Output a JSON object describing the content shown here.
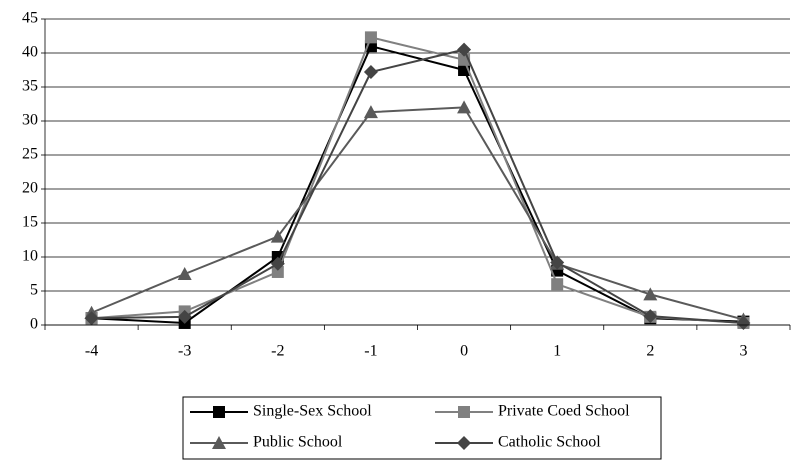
{
  "chart_data": {
    "type": "line",
    "categories": [
      "-4",
      "-3",
      "-2",
      "-1",
      "0",
      "1",
      "2",
      "3"
    ],
    "ylim": [
      0,
      45
    ],
    "yticks": [
      0,
      5,
      10,
      15,
      20,
      25,
      30,
      35,
      40,
      45
    ],
    "grid": true,
    "series": [
      {
        "name": "Single-Sex School",
        "color": "#000000",
        "marker": "square",
        "values": [
          1,
          0.3,
          10,
          41,
          37.5,
          8,
          1,
          0.5
        ]
      },
      {
        "name": "Private Coed School",
        "color": "#808080",
        "marker": "square",
        "values": [
          1,
          2,
          7.8,
          42.3,
          39,
          6,
          1.2,
          0.3
        ]
      },
      {
        "name": "Public School",
        "color": "#5a5a5a",
        "marker": "triangle",
        "values": [
          1.8,
          7.5,
          13,
          31.3,
          32,
          9,
          4.5,
          0.8
        ]
      },
      {
        "name": "Catholic School",
        "color": "#444444",
        "marker": "diamond",
        "values": [
          1,
          1.2,
          9,
          37.2,
          40.5,
          9.2,
          1.3,
          0.3
        ]
      }
    ]
  }
}
